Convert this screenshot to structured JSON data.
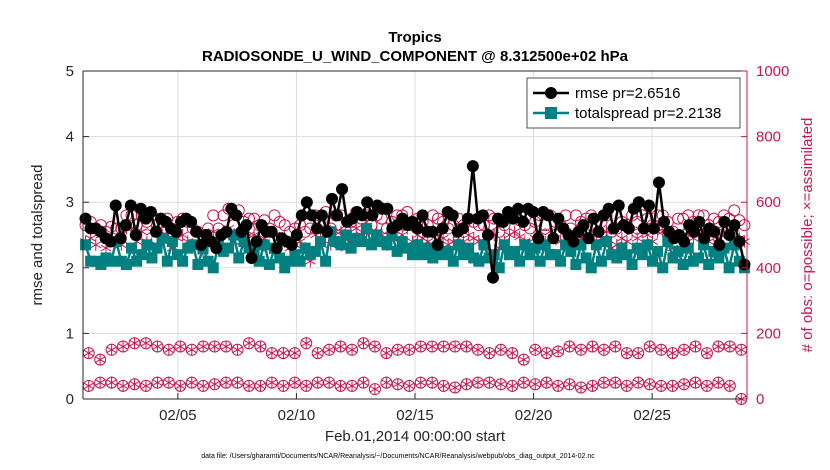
{
  "chart_data": {
    "type": "line",
    "title": "Tropics",
    "subtitle": "RADIOSONDE_U_WIND_COMPONENT @ 8.312500e+02 hPa",
    "xlabel": "Feb.01,2014 00:00:00 start",
    "ylabel_left": "rmse and totalspread",
    "ylabel_right": "# of obs: o=possible; ×=assimilated",
    "footnote": "data file: /Users/gharamti/Documents/NCAR/Reanalysis/~/Documents/NCAR/Reanalysis/webpub/obs_diag_output_2014-02.nc",
    "xlim": [
      1,
      29
    ],
    "ylim_left": [
      0,
      5
    ],
    "ylim_right": [
      0,
      1000
    ],
    "x_ticks": [
      5,
      10,
      15,
      20,
      25
    ],
    "x_tick_labels": [
      "02/05",
      "02/10",
      "02/15",
      "02/20",
      "02/25"
    ],
    "y_ticks_left": [
      0,
      1,
      2,
      3,
      4,
      5
    ],
    "y_tick_labels_left": [
      "0",
      "1",
      "2",
      "3",
      "4",
      "5"
    ],
    "y_ticks_right": [
      0,
      200,
      400,
      600,
      800,
      1000
    ],
    "y_tick_labels_right": [
      "0",
      "200",
      "400",
      "600",
      "800",
      "1000"
    ],
    "colors": {
      "rmse": "#000000",
      "spread": "#008080",
      "obs": "#c8174f",
      "axis": "#262626",
      "grid": "#dcdcdc"
    },
    "legend": {
      "location": "top-right",
      "entries": [
        "rmse pr=2.6516",
        "totalspread pr=2.2138"
      ]
    },
    "series": [
      {
        "name": "rmse pr=2.6516",
        "axis": "left",
        "values": [
          2.75,
          2.6,
          2.6,
          2.55,
          2.45,
          2.4,
          2.95,
          2.45,
          2.65,
          2.95,
          2.5,
          2.9,
          2.75,
          2.85,
          2.55,
          2.75,
          2.7,
          2.6,
          2.55,
          2.7,
          2.75,
          2.7,
          2.55,
          2.35,
          2.5,
          2.4,
          2.3,
          2.5,
          2.55,
          2.9,
          2.8,
          2.55,
          2.65,
          2.15,
          2.4,
          2.65,
          2.55,
          2.55,
          2.3,
          2.45,
          2.4,
          2.35,
          2.5,
          2.8,
          3.0,
          2.8,
          2.6,
          2.8,
          2.55,
          3.05,
          2.8,
          3.2,
          2.7,
          2.75,
          2.85,
          2.8,
          3.0,
          2.8,
          2.95,
          2.9,
          2.9,
          2.6,
          2.65,
          2.75,
          2.65,
          2.7,
          2.6,
          2.8,
          2.55,
          2.55,
          2.35,
          2.6,
          2.85,
          2.8,
          2.55,
          2.6,
          2.75,
          3.55,
          2.75,
          2.8,
          2.5,
          1.85,
          2.75,
          2.7,
          2.85,
          2.75,
          2.9,
          2.7,
          2.9,
          2.85,
          2.45,
          2.85,
          2.8,
          2.45,
          2.75,
          2.6,
          2.5,
          2.4,
          2.55,
          2.65,
          2.45,
          2.75,
          2.55,
          2.8,
          2.9,
          2.6,
          2.95,
          2.65,
          2.6,
          2.9,
          3.0,
          2.6,
          2.95,
          2.6,
          3.3,
          2.7,
          2.55,
          2.45,
          2.5,
          2.4,
          2.65,
          2.55,
          2.7,
          2.45,
          2.6,
          2.55,
          2.35,
          2.7,
          2.5,
          2.65,
          2.4,
          2.05
        ]
      },
      {
        "name": "totalspread pr=2.2138",
        "axis": "left",
        "values": [
          2.35,
          2.1,
          2.1,
          2.05,
          2.15,
          2.1,
          2.4,
          2.1,
          2.05,
          2.3,
          2.1,
          2.2,
          2.35,
          2.15,
          2.3,
          2.45,
          2.1,
          2.4,
          2.2,
          2.1,
          2.3,
          2.35,
          2.05,
          2.3,
          2.1,
          2.0,
          2.35,
          2.25,
          2.3,
          2.5,
          2.15,
          2.4,
          2.3,
          2.25,
          2.1,
          2.35,
          2.05,
          2.3,
          2.15,
          2.0,
          2.1,
          2.2,
          2.1,
          2.3,
          2.2,
          2.25,
          2.4,
          2.1,
          2.55,
          2.4,
          2.35,
          2.5,
          2.3,
          2.45,
          2.4,
          2.6,
          2.35,
          2.5,
          2.4,
          2.35,
          2.5,
          2.25,
          2.4,
          2.3,
          2.2,
          2.35,
          2.2,
          2.3,
          2.15,
          2.3,
          2.2,
          2.25,
          2.1,
          2.35,
          2.2,
          2.3,
          2.15,
          2.1,
          2.35,
          2.15,
          2.2,
          2.0,
          2.35,
          2.2,
          2.25,
          2.1,
          2.35,
          2.2,
          2.3,
          2.1,
          2.35,
          2.2,
          2.2,
          2.1,
          2.35,
          2.25,
          2.05,
          2.35,
          2.15,
          2.0,
          2.35,
          2.1,
          2.4,
          2.2,
          2.15,
          2.3,
          2.2,
          2.05,
          2.3,
          2.2,
          2.35,
          2.1,
          2.25,
          2.0,
          2.4,
          2.15,
          2.25,
          2.05,
          2.3,
          2.1,
          2.15,
          2.35,
          2.05,
          2.25,
          2.15,
          2.3,
          2.0,
          2.35,
          2.1,
          2.0
        ]
      },
      {
        "name": "possible",
        "axis": "right",
        "values": [
          530,
          540,
          520,
          530,
          510,
          525,
          520,
          520,
          560,
          560,
          530,
          560,
          540,
          560,
          530,
          540,
          550,
          510,
          540,
          550,
          540,
          520,
          510,
          500,
          520,
          560,
          520,
          560,
          580,
          530,
          575,
          540,
          550,
          550,
          530,
          545,
          520,
          560,
          540,
          530,
          510,
          520,
          530,
          510,
          520,
          560,
          540,
          570,
          520,
          560,
          560,
          510,
          540,
          570,
          550,
          560,
          530,
          560,
          550,
          520,
          540,
          560,
          560,
          570,
          530,
          550,
          540,
          530,
          560,
          550,
          540,
          520,
          530,
          550,
          530,
          550,
          540,
          530,
          530,
          560,
          550,
          510,
          530,
          560,
          560,
          545,
          530,
          520,
          540,
          560,
          530,
          560,
          540,
          530,
          560,
          520,
          560,
          540,
          550,
          560,
          530,
          540,
          560,
          510,
          520,
          540,
          530,
          560,
          540,
          560,
          550,
          530,
          560,
          560,
          540,
          510,
          550,
          550,
          560,
          540,
          560,
          560,
          530,
          550,
          540,
          560,
          550,
          575,
          545,
          530
        ]
      },
      {
        "name": "assimilated",
        "axis": "right",
        "values": [
          480,
          490,
          470,
          500,
          460,
          490,
          480,
          470,
          520,
          520,
          480,
          510,
          480,
          510,
          470,
          500,
          500,
          460,
          490,
          500,
          480,
          470,
          460,
          450,
          470,
          510,
          460,
          500,
          520,
          480,
          510,
          490,
          500,
          500,
          480,
          490,
          460,
          500,
          490,
          480,
          460,
          470,
          480,
          460,
          420,
          500,
          490,
          520,
          470,
          510,
          510,
          460,
          480,
          520,
          500,
          510,
          480,
          510,
          500,
          470,
          490,
          510,
          500,
          520,
          480,
          500,
          490,
          480,
          510,
          500,
          490,
          470,
          480,
          500,
          480,
          500,
          490,
          480,
          480,
          510,
          500,
          460,
          480,
          500,
          510,
          495,
          480,
          470,
          490,
          510,
          480,
          510,
          490,
          480,
          510,
          470,
          500,
          490,
          500,
          510,
          480,
          490,
          510,
          460,
          470,
          490,
          480,
          510,
          490,
          510,
          500,
          480,
          510,
          510,
          490,
          460,
          500,
          500,
          510,
          490,
          510,
          510,
          480,
          500,
          490,
          510,
          500,
          520,
          490,
          480
        ]
      },
      {
        "name": "possible_00Z",
        "axis": "right",
        "values": [
          140,
          120,
          150,
          160,
          170,
          170,
          160,
          150,
          160,
          150,
          160,
          160,
          160,
          150,
          170,
          160,
          140,
          140,
          140,
          170,
          140,
          150,
          160,
          150,
          170,
          160,
          140,
          150,
          150,
          160,
          160,
          160,
          160,
          160,
          150,
          140,
          150,
          140,
          120,
          150,
          140,
          145,
          160,
          150,
          160,
          150,
          160,
          140,
          140,
          160,
          150,
          140,
          150,
          160,
          140,
          160,
          160,
          150
        ]
      },
      {
        "name": "assimilated_00Z",
        "axis": "right",
        "values": [
          140,
          120,
          150,
          160,
          170,
          170,
          160,
          150,
          160,
          150,
          160,
          160,
          160,
          150,
          170,
          160,
          140,
          140,
          140,
          170,
          140,
          150,
          160,
          150,
          170,
          160,
          140,
          150,
          150,
          160,
          160,
          160,
          160,
          160,
          150,
          140,
          150,
          140,
          120,
          150,
          140,
          145,
          160,
          150,
          160,
          150,
          160,
          140,
          140,
          160,
          150,
          140,
          150,
          160,
          140,
          160,
          160,
          150
        ]
      },
      {
        "name": "possible_12Z",
        "axis": "right",
        "values": [
          40,
          50,
          50,
          40,
          45,
          40,
          50,
          50,
          40,
          50,
          40,
          45,
          50,
          50,
          40,
          40,
          50,
          40,
          50,
          40,
          50,
          50,
          40,
          40,
          50,
          30,
          50,
          45,
          40,
          50,
          50,
          40,
          35,
          45,
          50,
          50,
          45,
          40,
          50,
          45,
          50,
          40,
          45,
          35,
          40,
          50,
          50,
          40,
          50,
          45,
          40,
          40,
          45,
          50,
          40,
          50,
          40,
          0
        ]
      },
      {
        "name": "assimilated_12Z",
        "axis": "right",
        "values": [
          40,
          50,
          50,
          40,
          45,
          40,
          50,
          50,
          40,
          50,
          40,
          45,
          50,
          50,
          40,
          40,
          50,
          40,
          50,
          40,
          50,
          50,
          40,
          40,
          50,
          30,
          50,
          45,
          40,
          50,
          50,
          40,
          35,
          45,
          50,
          50,
          45,
          40,
          50,
          45,
          50,
          40,
          45,
          35,
          40,
          50,
          50,
          40,
          50,
          45,
          40,
          40,
          45,
          50,
          40,
          50,
          40,
          0
        ]
      }
    ]
  }
}
